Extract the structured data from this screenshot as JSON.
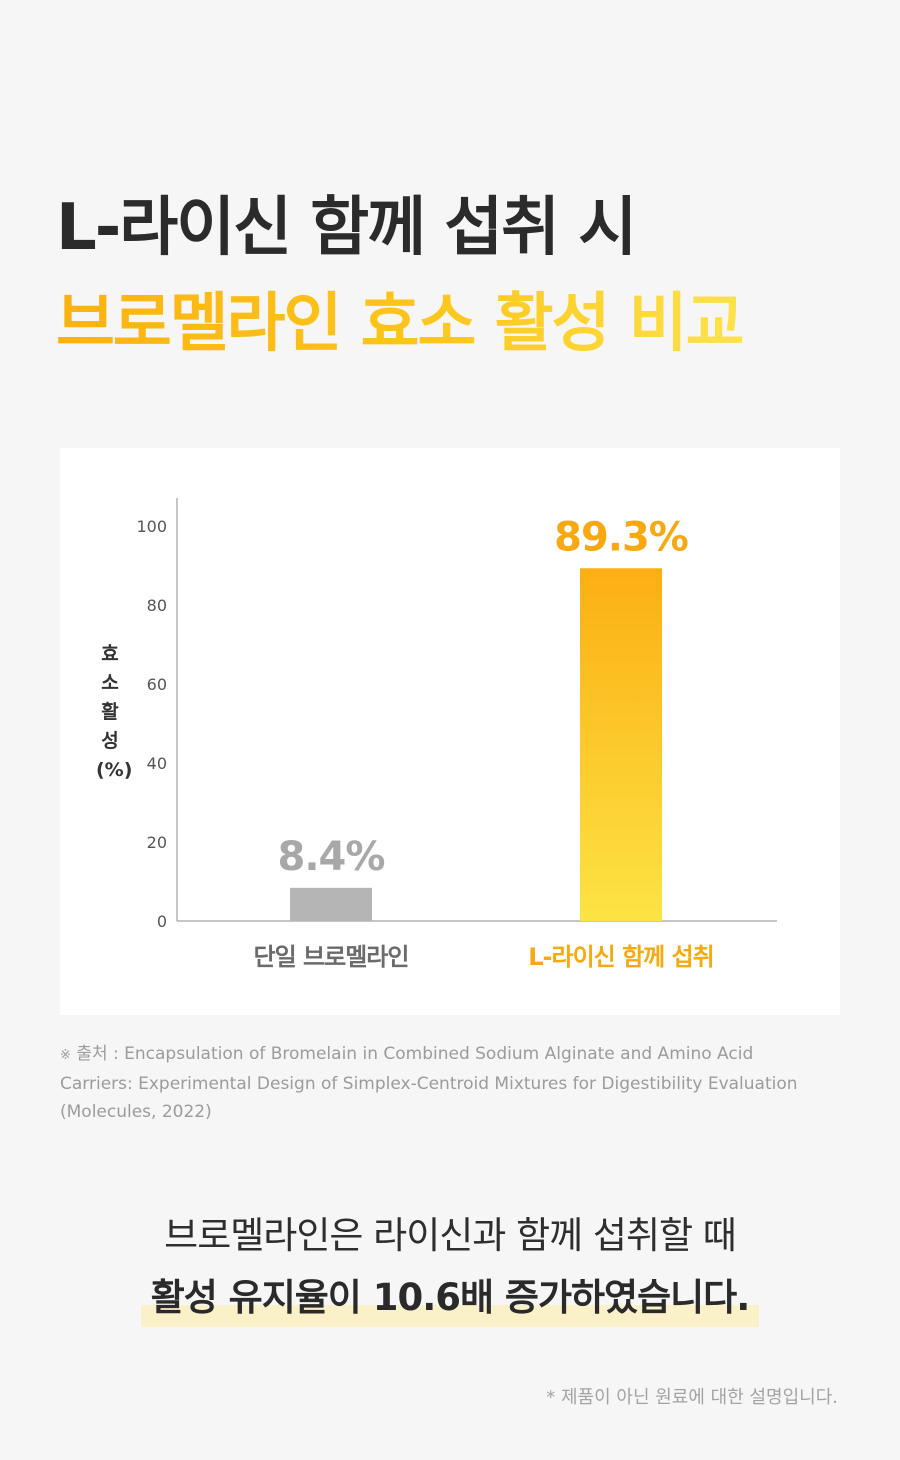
{
  "title": {
    "line1": "L-라이신 함께 섭취 시",
    "line2": "브로멜라인 효소 활성 비교"
  },
  "chart_data": {
    "type": "bar",
    "categories": [
      "단일 브로멜라인",
      "L-라이신 함께 섭취"
    ],
    "values": [
      8.4,
      89.3
    ],
    "value_labels": [
      "8.4%",
      "89.3%"
    ],
    "ylabel": "효소활성(%)",
    "ylim": [
      0,
      100
    ],
    "yticks": [
      "0",
      "20",
      "40",
      "60",
      "80",
      "100"
    ],
    "grid": false,
    "colors": {
      "bar1": "#b5b5b5",
      "bar1_label": "#a8a8a8",
      "bar2_top": "#fcaf13",
      "bar2_bottom": "#fde344",
      "bar2_label": "#f8a910",
      "category1_text": "#6b6b6b",
      "category2_text": "#f6aa0e",
      "axis": "#b3b3b3"
    }
  },
  "source": {
    "mark": "※",
    "text": "출처 : Encapsulation of Bromelain in Combined Sodium Alginate and Amino Acid Carriers: Experimental Design of Simplex-Centroid Mixtures for Digestibility Evaluation (Molecules, 2022)"
  },
  "summary": {
    "line1": "브로멜라인은 라이신과 함께 섭취할 때",
    "line2": "활성 유지율이 10.6배 증가하였습니다."
  },
  "footnote": "* 제품이 아닌 원료에 대한 설명입니다."
}
